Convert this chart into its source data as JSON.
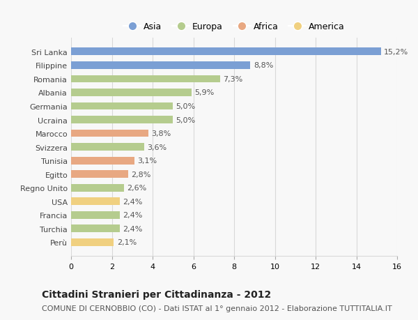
{
  "countries": [
    "Sri Lanka",
    "Filippine",
    "Romania",
    "Albania",
    "Germania",
    "Ucraina",
    "Marocco",
    "Svizzera",
    "Tunisia",
    "Egitto",
    "Regno Unito",
    "USA",
    "Francia",
    "Turchia",
    "Perù"
  ],
  "values": [
    15.2,
    8.8,
    7.3,
    5.9,
    5.0,
    5.0,
    3.8,
    3.6,
    3.1,
    2.8,
    2.6,
    2.4,
    2.4,
    2.4,
    2.1
  ],
  "labels": [
    "15,2%",
    "8,8%",
    "7,3%",
    "5,9%",
    "5,0%",
    "5,0%",
    "3,8%",
    "3,6%",
    "3,1%",
    "2,8%",
    "2,6%",
    "2,4%",
    "2,4%",
    "2,4%",
    "2,1%"
  ],
  "colors": [
    "#7b9fd4",
    "#7b9fd4",
    "#b5cc8e",
    "#b5cc8e",
    "#b5cc8e",
    "#b5cc8e",
    "#e8a882",
    "#b5cc8e",
    "#e8a882",
    "#e8a882",
    "#b5cc8e",
    "#f0d080",
    "#b5cc8e",
    "#b5cc8e",
    "#f0d080"
  ],
  "continents": [
    "Asia",
    "Europa",
    "Africa",
    "America"
  ],
  "continent_colors": [
    "#7b9fd4",
    "#b5cc8e",
    "#e8a882",
    "#f0d080"
  ],
  "title": "Cittadini Stranieri per Cittadinanza - 2012",
  "subtitle": "COMUNE DI CERNOBBIO (CO) - Dati ISTAT al 1° gennaio 2012 - Elaborazione TUTTITALIA.IT",
  "xlim": [
    0,
    16
  ],
  "xticks": [
    0,
    2,
    4,
    6,
    8,
    10,
    12,
    14,
    16
  ],
  "background_color": "#f8f8f8",
  "grid_color": "#d8d8d8",
  "title_fontsize": 10,
  "subtitle_fontsize": 8,
  "bar_label_fontsize": 8,
  "tick_fontsize": 8,
  "legend_fontsize": 9,
  "bar_height": 0.55
}
